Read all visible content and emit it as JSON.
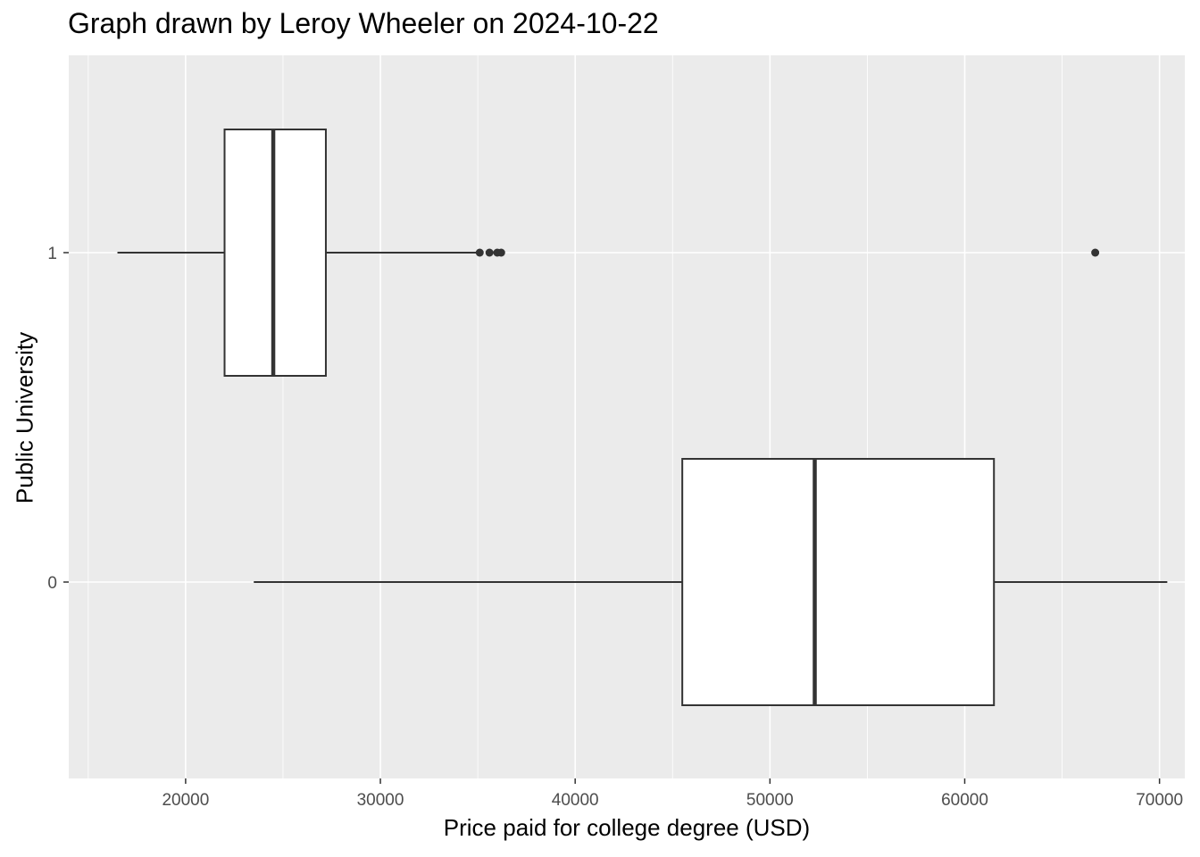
{
  "chart_data": {
    "type": "boxplot",
    "orientation": "horizontal",
    "title": "Graph drawn by Leroy Wheeler on 2024-10-22",
    "xlabel": "Price paid for college degree (USD)",
    "ylabel": "Public University",
    "xlim": [
      14000,
      71300
    ],
    "x_ticks": [
      20000,
      30000,
      40000,
      50000,
      60000,
      70000
    ],
    "x_tick_labels": [
      "20000",
      "30000",
      "40000",
      "50000",
      "60000",
      "70000"
    ],
    "categories": [
      "1",
      "0"
    ],
    "boxes": [
      {
        "category": "1",
        "whisker_low": 16500,
        "q1": 22000,
        "median": 24500,
        "q3": 27200,
        "whisker_high": 35000,
        "outliers": [
          35100,
          35600,
          36000,
          36200,
          66700
        ]
      },
      {
        "category": "0",
        "whisker_low": 23500,
        "q1": 45500,
        "median": 52300,
        "q3": 61500,
        "whisker_high": 70400,
        "outliers": []
      }
    ],
    "grid": true,
    "legend": "none",
    "colors": {
      "panel_background": "#ebebeb",
      "grid_major": "#ffffff",
      "box_fill": "#ffffff",
      "box_line": "#333333",
      "tick_text": "#4d4d4d"
    }
  }
}
